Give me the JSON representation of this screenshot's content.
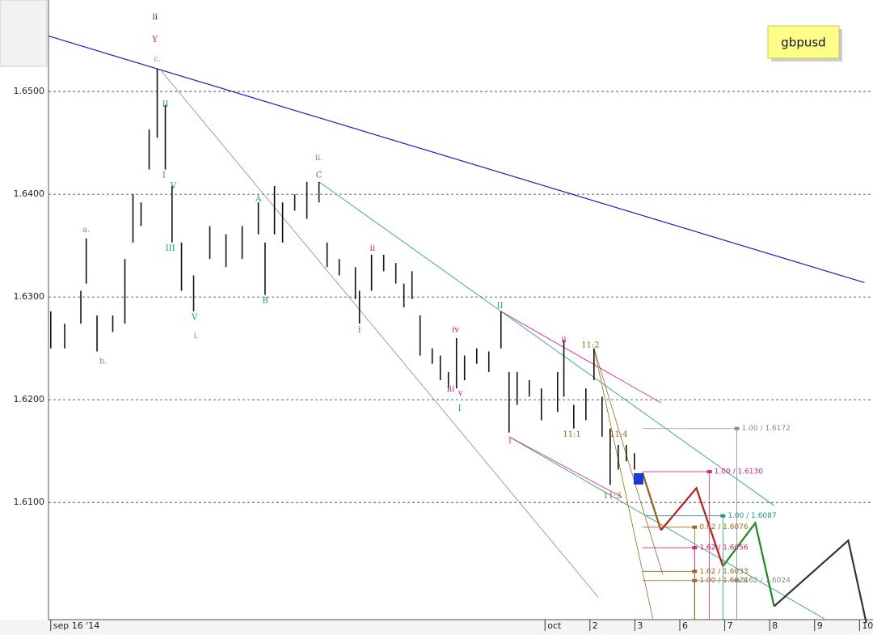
{
  "chart_data": {
    "type": "ohlc",
    "title": "gbpusd",
    "xlim": [
      -0.05,
      18.3
    ],
    "ylim": [
      1.5986,
      1.6589
    ],
    "xticks": [
      {
        "value": 0,
        "label": "sep 16 '14"
      },
      {
        "value": 11,
        "label": "oct"
      },
      {
        "value": 12,
        "label": "2"
      },
      {
        "value": 13,
        "label": "3"
      },
      {
        "value": 14,
        "label": "6"
      },
      {
        "value": 15,
        "label": "7"
      },
      {
        "value": 16,
        "label": "8"
      },
      {
        "value": 17,
        "label": "9"
      },
      {
        "value": 18,
        "label": "10"
      }
    ],
    "yticks": [
      {
        "value": 1.61,
        "label": "1.6100"
      },
      {
        "value": 1.62,
        "label": "1.6200"
      },
      {
        "value": 1.63,
        "label": "1.6300"
      },
      {
        "value": 1.64,
        "label": "1.6400"
      },
      {
        "value": 1.65,
        "label": "1.6500"
      }
    ],
    "grid": true,
    "color": "#111111",
    "x": [
      0,
      0.31,
      0.67,
      0.79,
      1.03,
      1.38,
      1.65,
      1.83,
      2.01,
      2.19,
      2.37,
      2.55,
      2.7,
      2.91,
      3.18,
      3.54,
      3.9,
      4.26,
      4.62,
      4.77,
      4.98,
      5.16,
      5.43,
      5.7,
      5.97,
      6.15,
      6.42,
      6.78,
      6.87,
      7.14,
      7.41,
      7.68,
      7.86,
      8.04,
      8.22,
      8.49,
      8.67,
      8.85,
      9.03,
      9.21,
      9.48,
      9.75,
      10.02,
      10.2,
      10.38,
      10.65,
      10.92,
      11.28,
      11.42,
      11.64,
      11.91,
      12.09,
      12.27,
      12.45,
      12.63,
      12.81,
      12.99
    ],
    "low": [
      1.625,
      1.625,
      1.6274,
      1.6313,
      1.6247,
      1.6266,
      1.6274,
      1.6353,
      1.6369,
      1.6424,
      1.6455,
      1.6424,
      1.6353,
      1.6306,
      1.6286,
      1.6337,
      1.6329,
      1.6337,
      1.6361,
      1.6302,
      1.6361,
      1.6353,
      1.6384,
      1.6376,
      1.6392,
      1.6329,
      1.6321,
      1.6298,
      1.6274,
      1.6306,
      1.6325,
      1.6313,
      1.629,
      1.6298,
      1.6243,
      1.6235,
      1.6219,
      1.6211,
      1.6211,
      1.6219,
      1.6235,
      1.6227,
      1.625,
      1.6168,
      1.6195,
      1.6203,
      1.618,
      1.6188,
      1.6203,
      1.6172,
      1.618,
      1.6219,
      1.6164,
      1.6117,
      1.6132,
      1.614,
      1.6132
    ],
    "high": [
      1.6286,
      1.6274,
      1.6306,
      1.6357,
      1.6282,
      1.6282,
      1.6337,
      1.64,
      1.6392,
      1.6463,
      1.6522,
      1.6487,
      1.6408,
      1.6353,
      1.6321,
      1.6369,
      1.6361,
      1.6369,
      1.6392,
      1.6353,
      1.6408,
      1.6392,
      1.64,
      1.6412,
      1.6412,
      1.6353,
      1.6337,
      1.6329,
      1.6306,
      1.6341,
      1.6341,
      1.6333,
      1.6313,
      1.6325,
      1.6282,
      1.625,
      1.6243,
      1.6227,
      1.626,
      1.6243,
      1.625,
      1.6247,
      1.6286,
      1.6227,
      1.6227,
      1.6219,
      1.6211,
      1.6227,
      1.6258,
      1.6195,
      1.6211,
      1.625,
      1.6203,
      1.6172,
      1.6156,
      1.6156,
      1.6148
    ],
    "lines": [
      {
        "color": "#1a1acc",
        "x": [
          -0.05,
          18.11
        ],
        "y": [
          1.6554,
          1.6314
        ]
      },
      {
        "color": "#8a8a8a",
        "x": [
          2.46,
          12.18
        ],
        "y": [
          1.652,
          1.6008
        ]
      },
      {
        "color": "#1a9a7a",
        "x": [
          5.97,
          16.1
        ],
        "y": [
          1.6412,
          1.6097
        ]
      },
      {
        "color": "#1a9a7a",
        "x": [
          10.2,
          17.21
        ],
        "y": [
          1.6164,
          1.5987
        ]
      },
      {
        "color": "#d01a8a",
        "x": [
          10.02,
          13.58
        ],
        "y": [
          1.6286,
          1.6197
        ]
      },
      {
        "color": "#d01a8a",
        "x": [
          10.2,
          12.72
        ],
        "y": [
          1.6164,
          1.6105
        ]
      },
      {
        "color": "#9a6a1a",
        "x": [
          12.09,
          13.4
        ],
        "y": [
          1.625,
          1.5987
        ]
      },
      {
        "color": "#9a6a1a",
        "x": [
          12.09,
          13.62
        ],
        "y": [
          1.625,
          1.603
        ]
      },
      {
        "color": "#9a5a1a",
        "x": [
          13.17,
          13.58
        ],
        "y": [
          1.6129,
          1.6073
        ]
      },
      {
        "color": "#c01a1a",
        "x": [
          13.58,
          14.37,
          14.96
        ],
        "y": [
          1.6073,
          1.6114,
          1.6038
        ]
      },
      {
        "color": "#1a8a1a",
        "x": [
          14.96,
          15.68,
          16.1
        ],
        "y": [
          1.6038,
          1.608,
          1.5999
        ]
      },
      {
        "color": "#333333",
        "x": [
          16.1,
          17.75,
          18.15
        ],
        "y": [
          1.5999,
          1.6063,
          1.5983
        ]
      }
    ],
    "levels": [
      {
        "label": "1.00 / 1.6172",
        "value": 1.6172,
        "x": [
          13.17,
          15.27
        ],
        "color": "#8a8a8a"
      },
      {
        "label": "1.00 / 1.6130",
        "value": 1.613,
        "x": [
          13.17,
          14.66
        ],
        "color": "#e0207a"
      },
      {
        "label": "1.00 / 1.6087",
        "value": 1.6087,
        "x": [
          13.26,
          14.96
        ],
        "color": "#1a9a7a"
      },
      {
        "label": "0.62 / 1.6076",
        "value": 1.6076,
        "x": [
          13.17,
          14.33
        ],
        "color": "#9a6a1a"
      },
      {
        "label": "1.62 / 1.6056",
        "value": 1.6056,
        "x": [
          13.17,
          14.33
        ],
        "color": "#e0207a"
      },
      {
        "label": "1.62 / 1.6033",
        "value": 1.6033,
        "x": [
          13.17,
          14.33
        ],
        "color": "#9a6a1a"
      },
      {
        "label": "1.00 / 1.6024",
        "value": 1.6024,
        "x": [
          13.17,
          14.33
        ],
        "color": "#9a6a1a"
      },
      {
        "label": "1.62 / 1.6024",
        "value": 1.6024,
        "x": [
          14.33,
          15.27
        ],
        "color": "#8a8a8a"
      }
    ],
    "annotations": [
      {
        "text": "ii",
        "x": 2.32,
        "y": 1.6572,
        "color": "#1a1acc"
      },
      {
        "text": "Y",
        "x": 2.32,
        "y": 1.655,
        "color": "#d01a1a"
      },
      {
        "text": "c.",
        "x": 2.37,
        "y": 1.6531,
        "color": "#888888"
      },
      {
        "text": "a.",
        "x": 0.79,
        "y": 1.6365,
        "color": "#888888"
      },
      {
        "text": "b.",
        "x": 1.17,
        "y": 1.6237,
        "color": "#888888"
      },
      {
        "text": "II",
        "x": 2.55,
        "y": 1.6487,
        "color": "#1a9a7a"
      },
      {
        "text": "I",
        "x": 2.52,
        "y": 1.6418,
        "color": "#1a9a7a"
      },
      {
        "text": "V",
        "x": 2.73,
        "y": 1.6408,
        "color": "#1a9a7a"
      },
      {
        "text": "III",
        "x": 2.66,
        "y": 1.6347,
        "color": "#1a9a7a"
      },
      {
        "text": "V",
        "x": 3.2,
        "y": 1.628,
        "color": "#1a9a7a"
      },
      {
        "text": "i.",
        "x": 3.24,
        "y": 1.6262,
        "color": "#888888"
      },
      {
        "text": "A",
        "x": 4.62,
        "y": 1.6395,
        "color": "#1a9a7a"
      },
      {
        "text": "B",
        "x": 4.77,
        "y": 1.6296,
        "color": "#1a9a7a"
      },
      {
        "text": "ii.",
        "x": 5.97,
        "y": 1.6435,
        "color": "#888888"
      },
      {
        "text": "C",
        "x": 5.97,
        "y": 1.6418,
        "color": "#1a9a7a"
      },
      {
        "text": "ii",
        "x": 7.16,
        "y": 1.6347,
        "color": "#d01a8a"
      },
      {
        "text": "i",
        "x": 6.87,
        "y": 1.6268,
        "color": "#d01a8a"
      },
      {
        "text": "iv",
        "x": 9.01,
        "y": 1.6268,
        "color": "#d01a8a"
      },
      {
        "text": "iii",
        "x": 8.9,
        "y": 1.621,
        "color": "#d01a8a"
      },
      {
        "text": "v",
        "x": 9.12,
        "y": 1.6206,
        "color": "#d01a8a"
      },
      {
        "text": "I",
        "x": 9.1,
        "y": 1.6191,
        "color": "#1a9a7a"
      },
      {
        "text": "II",
        "x": 10.0,
        "y": 1.6291,
        "color": "#1a9a7a"
      },
      {
        "text": "i",
        "x": 10.22,
        "y": 1.616,
        "color": "#d01a8a"
      },
      {
        "text": "ii",
        "x": 11.42,
        "y": 1.6258,
        "color": "#d01a8a"
      },
      {
        "text": "11:1",
        "x": 11.6,
        "y": 1.6166,
        "color": "#9a6a1a"
      },
      {
        "text": "11:2",
        "x": 12.01,
        "y": 1.6253,
        "color": "#9a6a1a"
      },
      {
        "text": "11:4",
        "x": 12.64,
        "y": 1.6166,
        "color": "#9a6a1a"
      },
      {
        "text": "11:3",
        "x": 12.5,
        "y": 1.6106,
        "color": "#9a6a1a"
      }
    ]
  }
}
